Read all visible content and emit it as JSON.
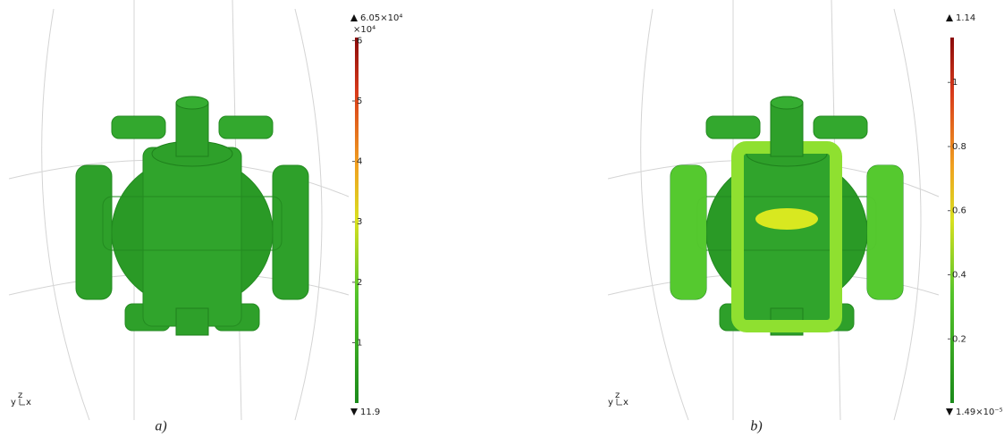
{
  "panels": [
    {
      "caption": "a)",
      "triad": {
        "y": "y",
        "z": "z",
        "x": "x"
      },
      "colorbar": {
        "max": {
          "value": 60500,
          "label": "6.05×10⁴"
        },
        "min": 11.9,
        "multiplier": "×10⁴",
        "ticks": [
          {
            "value": 60000,
            "label": "6"
          },
          {
            "value": 50000,
            "label": "5"
          },
          {
            "value": 40000,
            "label": "4"
          },
          {
            "value": 30000,
            "label": "3"
          },
          {
            "value": 20000,
            "label": "2"
          },
          {
            "value": 10000,
            "label": "1"
          }
        ]
      }
    },
    {
      "caption": "b)",
      "triad": {
        "y": "y",
        "z": "z",
        "x": "x"
      },
      "colorbar": {
        "max": 1.14,
        "min": {
          "value": 1.49e-05,
          "label": "1.49×10⁻⁵"
        },
        "ticks": [
          1,
          0.8,
          0.6,
          0.4,
          0.2
        ]
      }
    }
  ]
}
